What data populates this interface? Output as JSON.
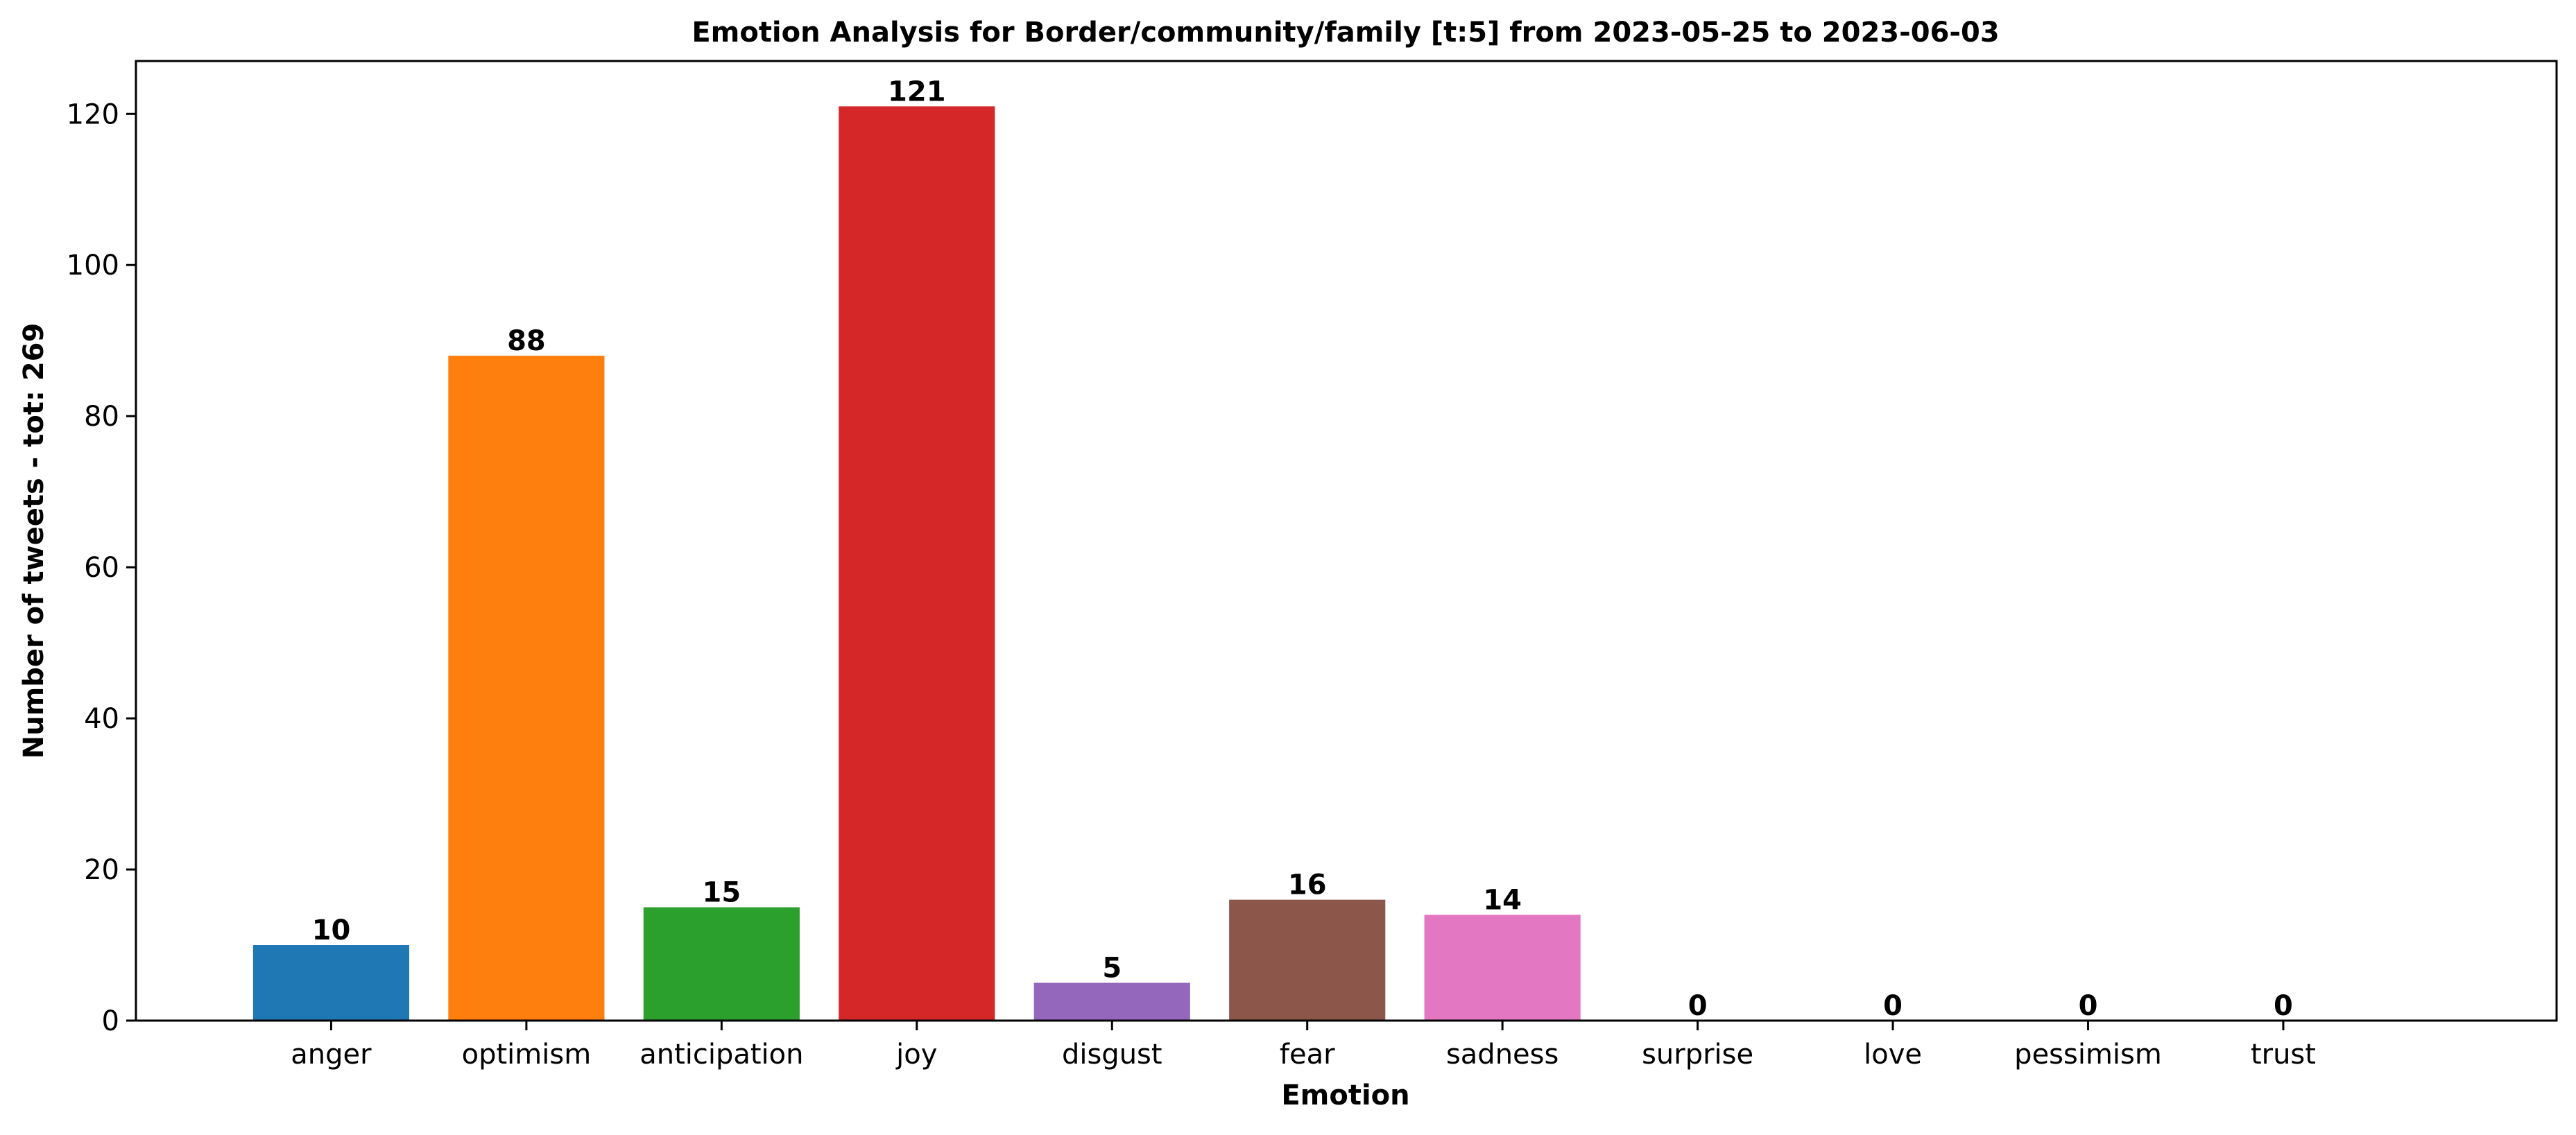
{
  "chart_data": {
    "type": "bar",
    "title": "Emotion Analysis for Border/community/family [t:5] from 2023-05-25 to 2023-06-03",
    "xlabel": "Emotion",
    "ylabel": "Number of tweets - tot: 269",
    "categories": [
      "anger",
      "optimism",
      "anticipation",
      "joy",
      "disgust",
      "fear",
      "sadness",
      "surprise",
      "love",
      "pessimism",
      "trust"
    ],
    "values": [
      10,
      88,
      15,
      121,
      5,
      16,
      14,
      0,
      0,
      0,
      0
    ],
    "colors": [
      "#1f77b4",
      "#ff7f0e",
      "#2ca02c",
      "#d62728",
      "#9467bd",
      "#8c564b",
      "#e377c2",
      "#7f7f7f",
      "#bcbd22",
      "#17becf",
      "#1f77b4"
    ],
    "yticks": [
      0,
      20,
      40,
      60,
      80,
      100,
      120
    ],
    "ylim": [
      0,
      127
    ],
    "grid": false,
    "legend": "none"
  }
}
